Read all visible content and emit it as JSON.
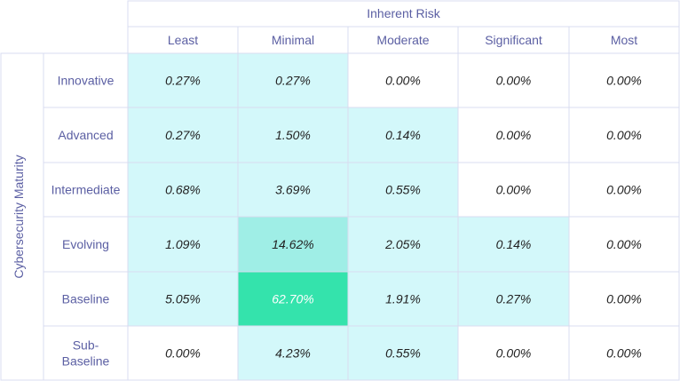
{
  "chart_data": {
    "type": "heatmap",
    "xlabel": "Inherent Risk",
    "ylabel": "Cybersecurity Maturity",
    "columns": [
      "Least",
      "Minimal",
      "Moderate",
      "Significant",
      "Most"
    ],
    "rows": [
      {
        "label": "Innovative",
        "values": [
          "0.27%",
          "0.27%",
          "0.00%",
          "0.00%",
          "0.00%"
        ]
      },
      {
        "label": "Advanced",
        "values": [
          "0.27%",
          "1.50%",
          "0.14%",
          "0.00%",
          "0.00%"
        ]
      },
      {
        "label": "Intermediate",
        "values": [
          "0.68%",
          "3.69%",
          "0.55%",
          "0.00%",
          "0.00%"
        ]
      },
      {
        "label": "Evolving",
        "values": [
          "1.09%",
          "14.62%",
          "2.05%",
          "0.14%",
          "0.00%"
        ]
      },
      {
        "label": "Baseline",
        "values": [
          "5.05%",
          "62.70%",
          "1.91%",
          "0.27%",
          "0.00%"
        ]
      },
      {
        "label": "Sub-\nBaseline",
        "values": [
          "0.00%",
          "4.23%",
          "0.55%",
          "0.00%",
          "0.00%"
        ]
      }
    ],
    "colors": {
      "zero": "#ffffff",
      "low": "#d3f8fa",
      "mid": "#9feee6",
      "high": "#34e3ac",
      "grid": "#d8dcf0",
      "header_text": "#5b5fa3",
      "value_text": "#222222",
      "value_text_on_high": "#ffffff"
    }
  }
}
